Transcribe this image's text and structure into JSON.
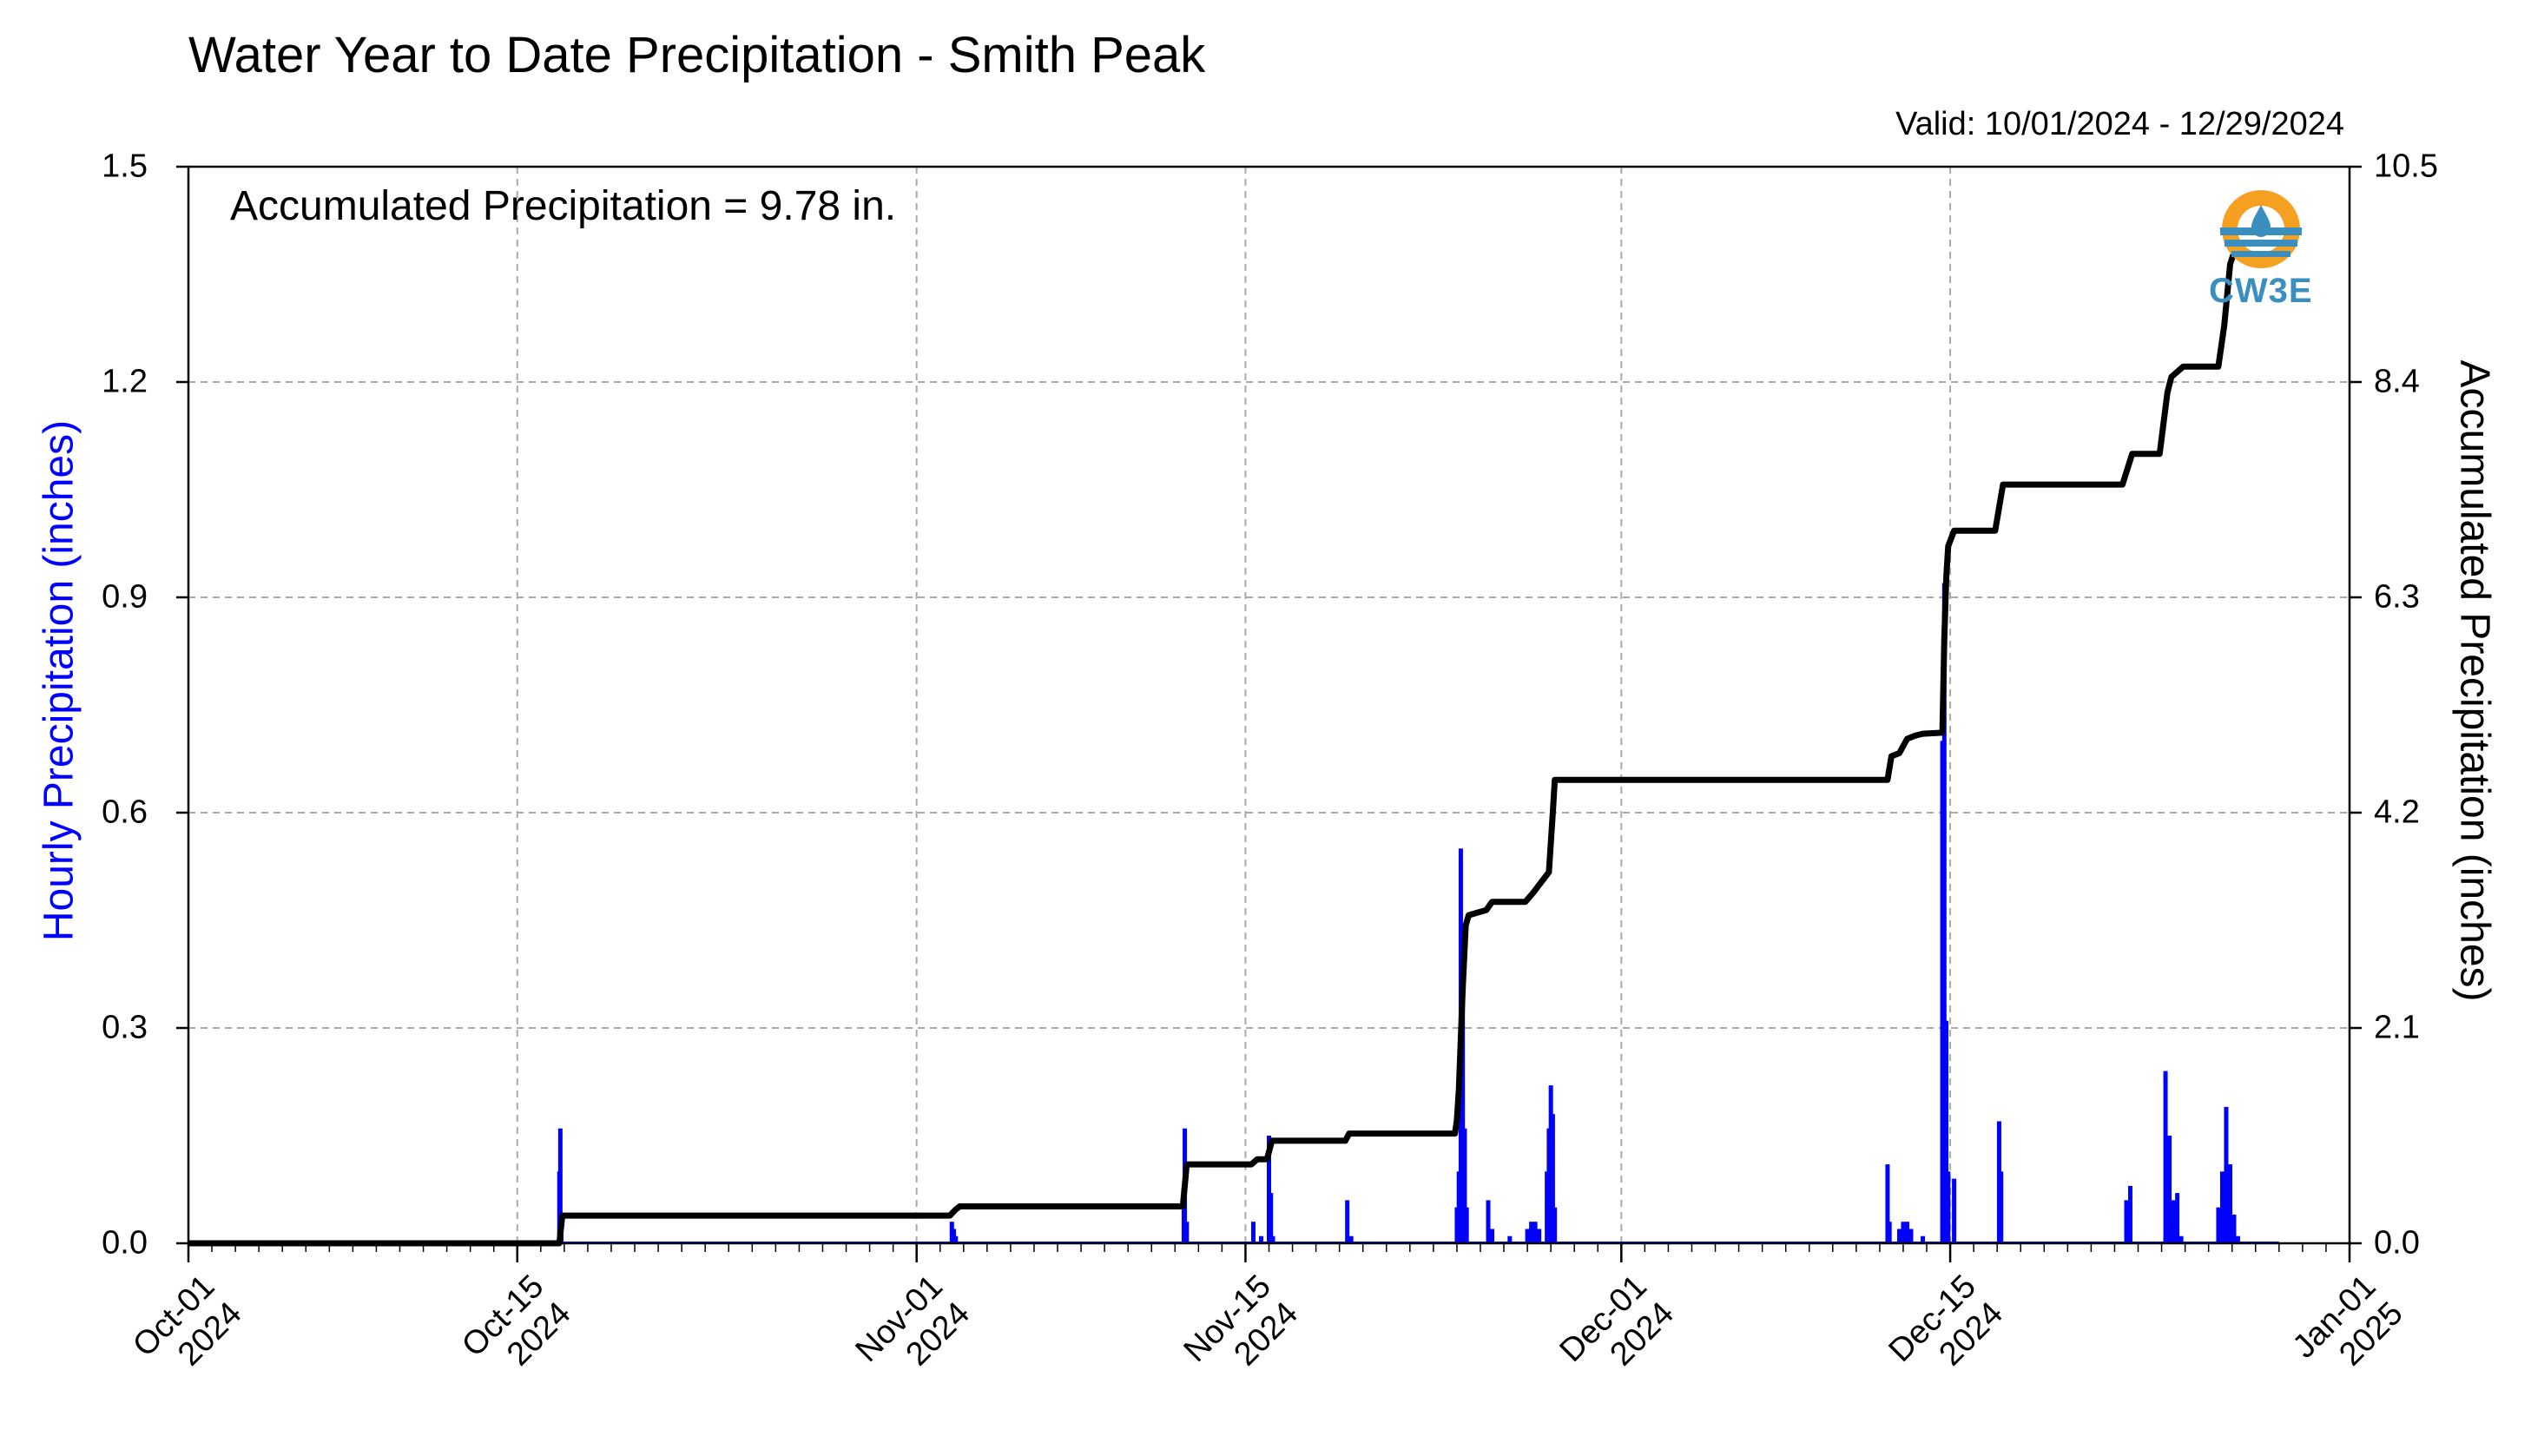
{
  "chart_data": {
    "type": "bar+line",
    "title": "Water Year to Date Precipitation - Smith Peak",
    "valid_text": "Valid: 10/01/2024 - 12/29/2024",
    "annotation": "Accumulated Precipitation = 9.78 in.",
    "logo_text": "CW3E",
    "ylabel_left": "Hourly Precipitation (inches)",
    "ylabel_right": "Accumulated Precipitation (inches)",
    "ylim_left": [
      0,
      1.5
    ],
    "ylim_right": [
      0,
      10.5
    ],
    "yticks_left": [
      "0.0",
      "0.3",
      "0.6",
      "0.9",
      "1.2",
      "1.5"
    ],
    "yticks_right": [
      "0.0",
      "2.1",
      "4.2",
      "6.3",
      "8.4",
      "10.5"
    ],
    "xlim": [
      "2024-10-01",
      "2025-01-01"
    ],
    "xticks": [
      {
        "date": "2024-10-01",
        "l1": "Oct-01",
        "l2": "2024"
      },
      {
        "date": "2024-10-15",
        "l1": "Oct-15",
        "l2": "2024"
      },
      {
        "date": "2024-11-01",
        "l1": "Nov-01",
        "l2": "2024"
      },
      {
        "date": "2024-11-15",
        "l1": "Nov-15",
        "l2": "2024"
      },
      {
        "date": "2024-12-01",
        "l1": "Dec-01",
        "l2": "2024"
      },
      {
        "date": "2024-12-15",
        "l1": "Dec-15",
        "l2": "2024"
      },
      {
        "date": "2025-01-01",
        "l1": "Jan-01",
        "l2": "2025"
      }
    ],
    "grid": true,
    "colors": {
      "hourly": "#0000ff",
      "accumulated": "#000000",
      "grid": "#aaaaaa",
      "logo": "#3a8fbf",
      "logo_ring": "#f5a020"
    },
    "hourly_series": {
      "name": "Hourly Precipitation",
      "points": [
        [
          "2024-10-16T19:00",
          0.1
        ],
        [
          "2024-10-16T20:00",
          0.16
        ],
        [
          "2024-10-16T21:00",
          0.04
        ],
        [
          "2024-11-02T12:00",
          0.03
        ],
        [
          "2024-11-02T14:00",
          0.02
        ],
        [
          "2024-11-02T16:00",
          0.01
        ],
        [
          "2024-11-12T09:00",
          0.05
        ],
        [
          "2024-11-12T10:00",
          0.16
        ],
        [
          "2024-11-12T12:00",
          0.03
        ],
        [
          "2024-11-15T08:00",
          0.03
        ],
        [
          "2024-11-15T16:00",
          0.01
        ],
        [
          "2024-11-16T00:00",
          0.15
        ],
        [
          "2024-11-16T02:00",
          0.07
        ],
        [
          "2024-11-16T04:00",
          0.01
        ],
        [
          "2024-11-19T08:00",
          0.06
        ],
        [
          "2024-11-19T12:00",
          0.01
        ],
        [
          "2024-11-24T00:00",
          0.05
        ],
        [
          "2024-11-24T02:00",
          0.1
        ],
        [
          "2024-11-24T04:00",
          0.55
        ],
        [
          "2024-11-24T06:00",
          0.4
        ],
        [
          "2024-11-24T08:00",
          0.16
        ],
        [
          "2024-11-24T10:00",
          0.05
        ],
        [
          "2024-11-25T08:00",
          0.06
        ],
        [
          "2024-11-25T12:00",
          0.02
        ],
        [
          "2024-11-26T06:00",
          0.01
        ],
        [
          "2024-11-27T00:00",
          0.02
        ],
        [
          "2024-11-27T04:00",
          0.03
        ],
        [
          "2024-11-27T08:00",
          0.03
        ],
        [
          "2024-11-27T12:00",
          0.02
        ],
        [
          "2024-11-27T20:00",
          0.1
        ],
        [
          "2024-11-27T22:00",
          0.16
        ],
        [
          "2024-11-28T00:00",
          0.22
        ],
        [
          "2024-11-28T02:00",
          0.18
        ],
        [
          "2024-11-28T04:00",
          0.05
        ],
        [
          "2024-12-12T08:00",
          0.11
        ],
        [
          "2024-12-12T10:00",
          0.03
        ],
        [
          "2024-12-12T20:00",
          0.02
        ],
        [
          "2024-12-13T00:00",
          0.03
        ],
        [
          "2024-12-13T04:00",
          0.03
        ],
        [
          "2024-12-13T08:00",
          0.02
        ],
        [
          "2024-12-13T20:00",
          0.01
        ],
        [
          "2024-12-14T16:00",
          0.7
        ],
        [
          "2024-12-14T18:00",
          0.92
        ],
        [
          "2024-12-14T20:00",
          0.31
        ],
        [
          "2024-12-14T22:00",
          0.1
        ],
        [
          "2024-12-15T04:00",
          0.09
        ],
        [
          "2024-12-17T02:00",
          0.17
        ],
        [
          "2024-12-17T04:00",
          0.1
        ],
        [
          "2024-12-22T12:00",
          0.06
        ],
        [
          "2024-12-22T16:00",
          0.08
        ],
        [
          "2024-12-24T04:00",
          0.24
        ],
        [
          "2024-12-24T08:00",
          0.15
        ],
        [
          "2024-12-24T12:00",
          0.06
        ],
        [
          "2024-12-24T16:00",
          0.07
        ],
        [
          "2024-12-24T20:00",
          0.01
        ],
        [
          "2024-12-26T10:00",
          0.05
        ],
        [
          "2024-12-26T14:00",
          0.1
        ],
        [
          "2024-12-26T18:00",
          0.19
        ],
        [
          "2024-12-26T22:00",
          0.11
        ],
        [
          "2024-12-27T02:00",
          0.04
        ],
        [
          "2024-12-27T06:00",
          0.01
        ]
      ]
    },
    "accumulated_series": {
      "name": "Accumulated Precipitation",
      "points": [
        [
          "2024-10-01T00:00",
          0.0
        ],
        [
          "2024-10-16T19:00",
          0.0
        ],
        [
          "2024-10-16T22:00",
          0.27
        ],
        [
          "2024-11-02T10:00",
          0.27
        ],
        [
          "2024-11-02T16:00",
          0.33
        ],
        [
          "2024-11-02T20:00",
          0.36
        ],
        [
          "2024-11-12T08:00",
          0.36
        ],
        [
          "2024-11-12T12:00",
          0.77
        ],
        [
          "2024-11-15T06:00",
          0.77
        ],
        [
          "2024-11-15T12:00",
          0.82
        ],
        [
          "2024-11-15T22:00",
          0.82
        ],
        [
          "2024-11-16T03:00",
          1.0
        ],
        [
          "2024-11-19T06:00",
          1.0
        ],
        [
          "2024-11-19T10:00",
          1.07
        ],
        [
          "2024-11-23T22:00",
          1.07
        ],
        [
          "2024-11-24T00:00",
          1.2
        ],
        [
          "2024-11-24T02:00",
          1.5
        ],
        [
          "2024-11-24T06:00",
          2.5
        ],
        [
          "2024-11-24T09:00",
          3.1
        ],
        [
          "2024-11-24T12:00",
          3.2
        ],
        [
          "2024-11-25T06:00",
          3.25
        ],
        [
          "2024-11-25T12:00",
          3.33
        ],
        [
          "2024-11-26T22:00",
          3.33
        ],
        [
          "2024-11-27T06:00",
          3.42
        ],
        [
          "2024-11-27T14:00",
          3.52
        ],
        [
          "2024-11-27T22:00",
          3.62
        ],
        [
          "2024-11-28T02:00",
          4.2
        ],
        [
          "2024-11-28T04:00",
          4.52
        ],
        [
          "2024-12-12T08:00",
          4.52
        ],
        [
          "2024-12-12T12:00",
          4.75
        ],
        [
          "2024-12-12T20:00",
          4.78
        ],
        [
          "2024-12-13T04:00",
          4.92
        ],
        [
          "2024-12-13T12:00",
          4.95
        ],
        [
          "2024-12-13T20:00",
          4.97
        ],
        [
          "2024-12-14T16:00",
          4.98
        ],
        [
          "2024-12-14T18:00",
          5.9
        ],
        [
          "2024-12-14T20:00",
          6.5
        ],
        [
          "2024-12-14T22:00",
          6.8
        ],
        [
          "2024-12-15T04:00",
          6.95
        ],
        [
          "2024-12-16T22:00",
          6.95
        ],
        [
          "2024-12-17T06:00",
          7.4
        ],
        [
          "2024-12-22T08:00",
          7.4
        ],
        [
          "2024-12-22T18:00",
          7.7
        ],
        [
          "2024-12-23T22:00",
          7.7
        ],
        [
          "2024-12-24T06:00",
          8.3
        ],
        [
          "2024-12-24T10:00",
          8.45
        ],
        [
          "2024-12-24T22:00",
          8.55
        ],
        [
          "2024-12-26T10:00",
          8.55
        ],
        [
          "2024-12-26T16:00",
          8.95
        ],
        [
          "2024-12-26T22:00",
          9.55
        ],
        [
          "2024-12-27T04:00",
          9.72
        ],
        [
          "2024-12-27T10:00",
          9.78
        ],
        [
          "2024-12-29T00:00",
          9.78
        ]
      ]
    }
  }
}
